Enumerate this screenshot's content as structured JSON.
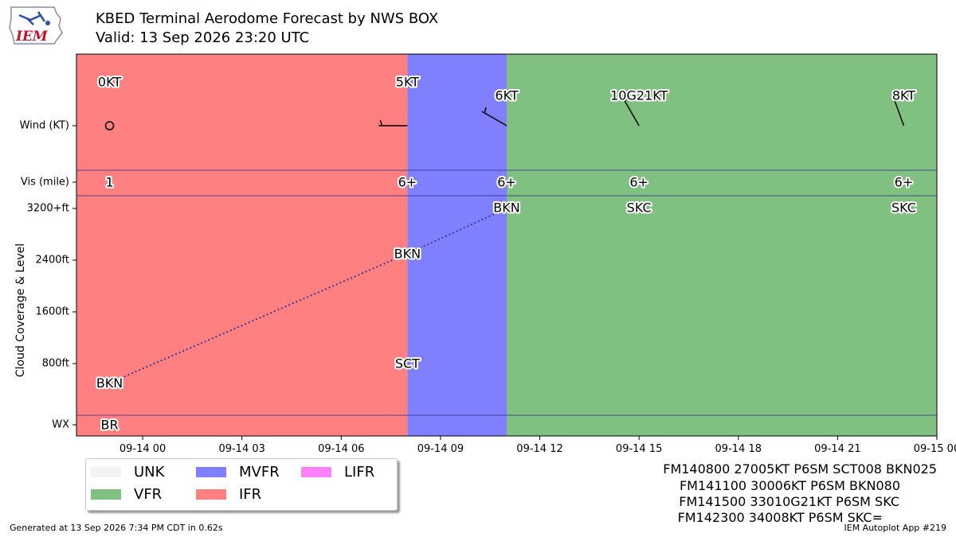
{
  "header": {
    "title": "KBED Terminal Aerodome Forecast by NWS BOX",
    "subtitle": "Valid: 13 Sep 2026 23:20 UTC",
    "logo_text": "IEM"
  },
  "chart_data": {
    "type": "timeline",
    "x_range_hours_after_0000_14_Sep": [
      -2.0,
      24.0
    ],
    "x_ticks": [
      {
        "hour": 0,
        "label": "09-14 00"
      },
      {
        "hour": 3,
        "label": "09-14 03"
      },
      {
        "hour": 6,
        "label": "09-14 06"
      },
      {
        "hour": 9,
        "label": "09-14 09"
      },
      {
        "hour": 12,
        "label": "09-14 12"
      },
      {
        "hour": 15,
        "label": "09-14 15"
      },
      {
        "hour": 18,
        "label": "09-14 18"
      },
      {
        "hour": 21,
        "label": "09-14 21"
      },
      {
        "hour": 24,
        "label": "09-15 00"
      }
    ],
    "ylabel": "Cloud Coverage & Level",
    "row_labels": {
      "wind": "Wind (KT)",
      "vis": "Vis (mile)",
      "wx": "WX"
    },
    "cloud_ticks": [
      {
        "ft": 800,
        "label": "800ft"
      },
      {
        "ft": 1600,
        "label": "1600ft"
      },
      {
        "ft": 2400,
        "label": "2400ft"
      },
      {
        "ft": 3200,
        "label": "3200+ft"
      }
    ],
    "category_periods": [
      {
        "start": -2.0,
        "end": 8.0,
        "category": "IFR"
      },
      {
        "start": 8.0,
        "end": 11.0,
        "category": "MVFR"
      },
      {
        "start": 11.0,
        "end": 24.0,
        "category": "VFR"
      }
    ],
    "wind": [
      {
        "hour": -1.0,
        "label": "0KT",
        "dir": 0,
        "speed": 0
      },
      {
        "hour": 8.0,
        "label": "5KT",
        "dir": 270,
        "speed": 5
      },
      {
        "hour": 11.0,
        "label": "6KT",
        "dir": 300,
        "speed": 6
      },
      {
        "hour": 15.0,
        "label": "10G21KT",
        "dir": 330,
        "speed": 10
      },
      {
        "hour": 23.0,
        "label": "8KT",
        "dir": 340,
        "speed": 8
      }
    ],
    "visibility": [
      {
        "hour": -1.0,
        "label": "1"
      },
      {
        "hour": 8.0,
        "label": "6+"
      },
      {
        "hour": 11.0,
        "label": "6+"
      },
      {
        "hour": 15.0,
        "label": "6+"
      },
      {
        "hour": 23.0,
        "label": "6+"
      }
    ],
    "clouds": [
      {
        "hour": -1.0,
        "ft": 500,
        "label": "BKN"
      },
      {
        "hour": 8.0,
        "ft": 800,
        "label": "SCT"
      },
      {
        "hour": 8.0,
        "ft": 2500,
        "label": "BKN"
      },
      {
        "hour": 11.0,
        "ft": 3200,
        "label": "BKN"
      },
      {
        "hour": 15.0,
        "ft": 3200,
        "label": "SKC"
      },
      {
        "hour": 23.0,
        "ft": 3200,
        "label": "SKC"
      }
    ],
    "ceiling_line": [
      {
        "hour": -1.0,
        "ft": 500
      },
      {
        "hour": 8.0,
        "ft": 2500
      },
      {
        "hour": 11.0,
        "ft": 3200
      }
    ],
    "weather": [
      {
        "hour": -1.0,
        "label": "BR"
      }
    ]
  },
  "legend": {
    "items": [
      {
        "label": "UNK",
        "color": "#f2f2f2"
      },
      {
        "label": "VFR",
        "color": "#80c080"
      },
      {
        "label": "MVFR",
        "color": "#8080ff"
      },
      {
        "label": "IFR",
        "color": "#ff8080"
      },
      {
        "label": "LIFR",
        "color": "#ff80ff"
      }
    ]
  },
  "raw_taf": [
    "FM140800 27005KT P6SM SCT008 BKN025",
    "FM141100 30006KT P6SM BKN080",
    "FM141500 33010G21KT P6SM SKC",
    "FM142300 34008KT P6SM SKC="
  ],
  "footer": {
    "generated": "Generated at 13 Sep 2026 7:34 PM CDT in 0.62s",
    "app": "IEM Autoplot App #219"
  }
}
